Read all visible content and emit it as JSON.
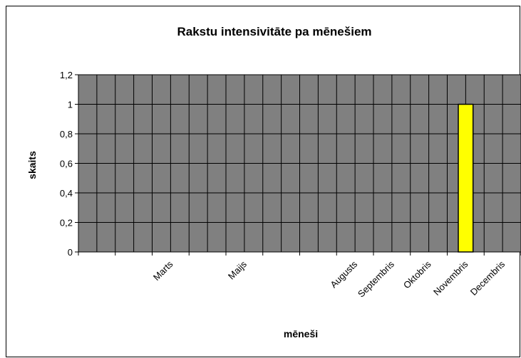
{
  "chart_data": {
    "type": "bar",
    "title": "Rakstu intensivitāte pa mēnešiem",
    "y_label": "skaits",
    "x_label": "mēneši",
    "categories": [
      null,
      null,
      "Marts",
      null,
      "Maijs",
      null,
      null,
      "Augusts",
      "Septembris",
      "Oktobris",
      "Novembris",
      "Decembris"
    ],
    "values": [
      0,
      0,
      0,
      0,
      0,
      0,
      0,
      0,
      0,
      0,
      1,
      0
    ],
    "color": "#ffff00",
    "ylim": [
      0,
      1.2
    ],
    "yticks": [
      0,
      {
        "value": 0.2,
        "label": "0,2"
      },
      {
        "value": 0.4,
        "label": "0,4"
      },
      {
        "value": 0.6,
        "label": "0,6"
      },
      {
        "value": 0.8,
        "label": "0,8"
      },
      1,
      {
        "value": 1.2,
        "label": "1,2"
      }
    ],
    "grid": true
  }
}
